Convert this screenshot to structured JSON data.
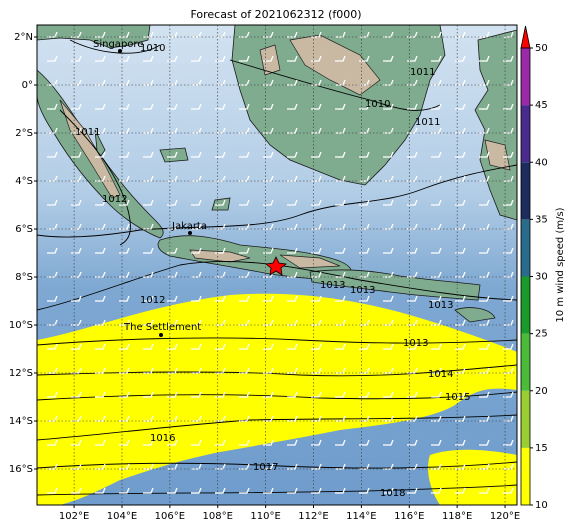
{
  "map": {
    "title": "Forecast of 2021062312 (f000)",
    "lonlim": [
      100.45,
      120.5
    ],
    "latlim": [
      -17.5,
      2.5
    ],
    "lonticks": [
      {
        "value": 102,
        "label": "102°E"
      },
      {
        "value": 104,
        "label": "104°E"
      },
      {
        "value": 106,
        "label": "106°E"
      },
      {
        "value": 108,
        "label": "108°E"
      },
      {
        "value": 110,
        "label": "110°E"
      },
      {
        "value": 112,
        "label": "112°E"
      },
      {
        "value": 114,
        "label": "114°E"
      },
      {
        "value": 116,
        "label": "116°E"
      },
      {
        "value": 118,
        "label": "118°E"
      },
      {
        "value": 120,
        "label": "120°E"
      }
    ],
    "latticks": [
      {
        "value": 2,
        "label": "2°N"
      },
      {
        "value": 0,
        "label": "0°"
      },
      {
        "value": -2,
        "label": "2°S"
      },
      {
        "value": -4,
        "label": "4°S"
      },
      {
        "value": -6,
        "label": "6°S"
      },
      {
        "value": -8,
        "label": "8°S"
      },
      {
        "value": -10,
        "label": "10°S"
      },
      {
        "value": -12,
        "label": "12°S"
      },
      {
        "value": -14,
        "label": "14°S"
      },
      {
        "value": -16,
        "label": "16°S"
      }
    ],
    "grid": true,
    "cities": [
      "Singapore",
      "Jakarta",
      "The Settlement"
    ],
    "contour_labels": [
      "1010",
      "1010",
      "1011",
      "1011",
      "1011",
      "1012",
      "1012",
      "1013",
      "1013",
      "1013",
      "1013",
      "1014",
      "1015",
      "1016",
      "1017",
      "1018"
    ],
    "colorbar": {
      "label": "10 m wind speed (m/s)",
      "lim": [
        10,
        50
      ],
      "ticks": [
        10,
        15,
        20,
        25,
        30,
        35,
        40,
        45,
        50
      ],
      "colors": [
        "#ffff00",
        "#9acd32",
        "#4cbb3a",
        "#1a9a2a",
        "#2a6a8a",
        "#1c2c5c",
        "#4a2a8c",
        "#9a2aa8"
      ],
      "extend_color": "#ff0000"
    }
  }
}
